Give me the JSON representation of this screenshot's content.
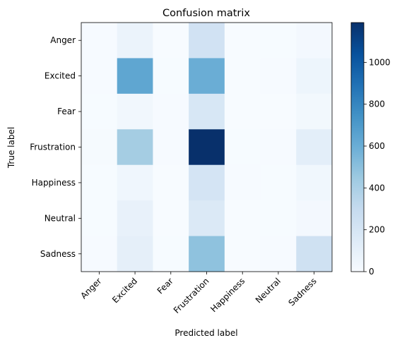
{
  "chart_data": {
    "type": "heatmap",
    "title": "Confusion matrix",
    "xlabel": "Predicted label",
    "ylabel": "True label",
    "x_categories": [
      "Anger",
      "Excited",
      "Fear",
      "Frustration",
      "Happiness",
      "Neutral",
      "Sadness"
    ],
    "y_categories": [
      "Anger",
      "Excited",
      "Fear",
      "Frustration",
      "Happiness",
      "Neutral",
      "Sadness"
    ],
    "values": [
      [
        5,
        70,
        2,
        230,
        1,
        3,
        25
      ],
      [
        8,
        640,
        3,
        600,
        2,
        5,
        60
      ],
      [
        3,
        35,
        5,
        190,
        1,
        2,
        30
      ],
      [
        10,
        420,
        5,
        1190,
        3,
        8,
        120
      ],
      [
        4,
        45,
        2,
        210,
        5,
        3,
        40
      ],
      [
        3,
        90,
        2,
        170,
        1,
        4,
        25
      ],
      [
        6,
        110,
        3,
        490,
        2,
        5,
        240
      ]
    ],
    "colorbar": {
      "min": 0,
      "max": 1190,
      "ticks": [
        0,
        200,
        400,
        600,
        800,
        1000
      ]
    },
    "colormap": [
      "#f7fbff",
      "#deebf7",
      "#c6dbef",
      "#9ecae1",
      "#6baed6",
      "#4292c6",
      "#2171b5",
      "#08519c",
      "#08306b"
    ]
  }
}
